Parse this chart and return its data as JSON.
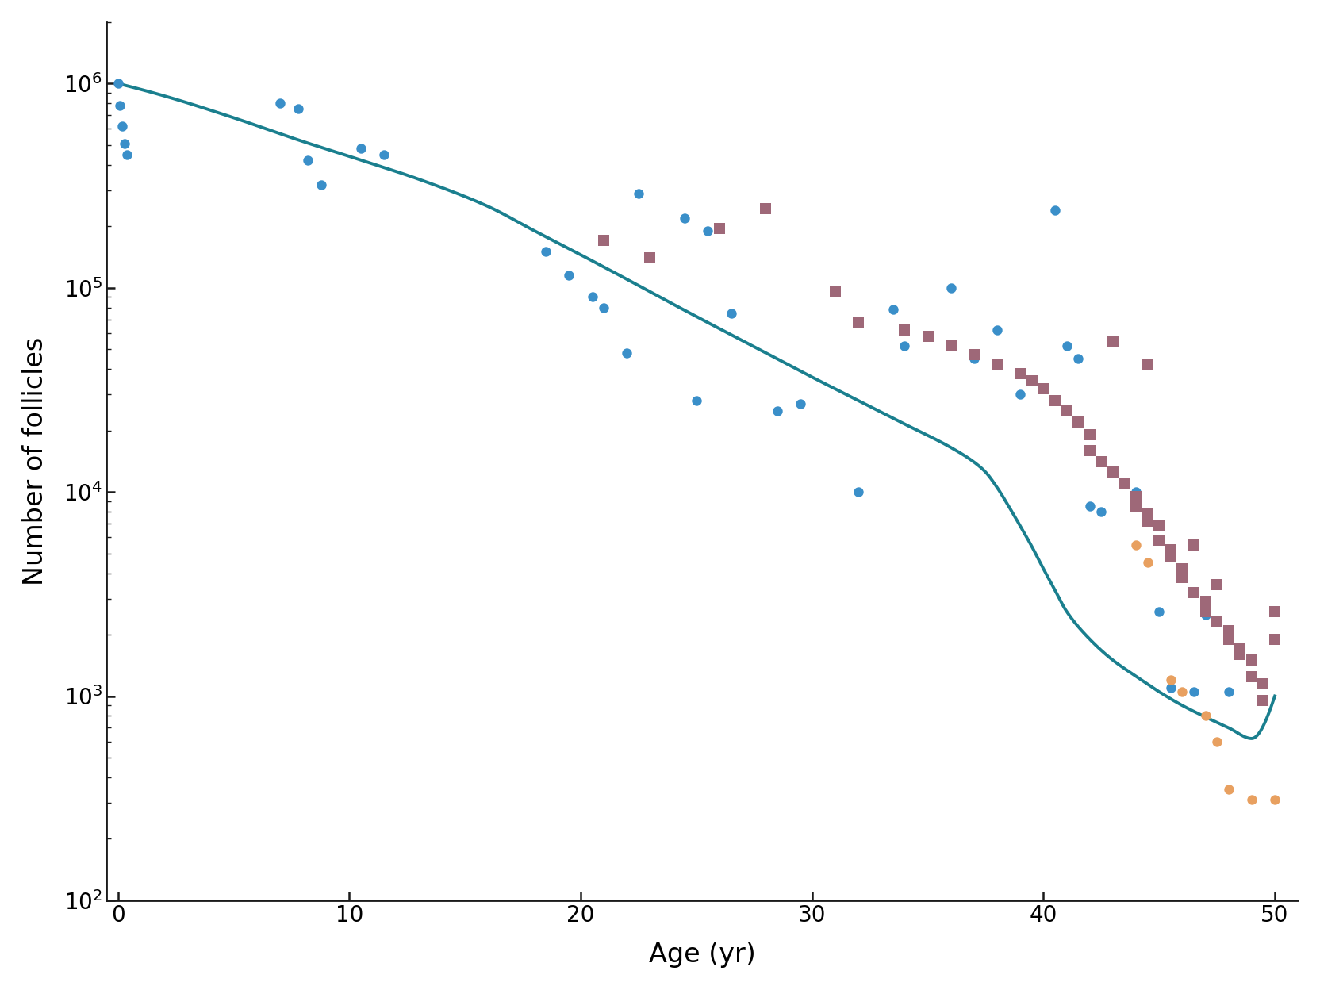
{
  "title": "",
  "xlabel": "Age (yr)",
  "ylabel": "Number of follicles",
  "xlim": [
    -0.5,
    51
  ],
  "ylim": [
    100,
    2000000
  ],
  "yticks": [
    100,
    1000,
    10000,
    100000,
    1000000
  ],
  "xticks": [
    0,
    10,
    20,
    30,
    40,
    50
  ],
  "blue_circles": [
    [
      0.0,
      1000000
    ],
    [
      0.1,
      780000
    ],
    [
      0.2,
      620000
    ],
    [
      0.3,
      510000
    ],
    [
      0.4,
      450000
    ],
    [
      7.0,
      800000
    ],
    [
      7.8,
      750000
    ],
    [
      8.2,
      420000
    ],
    [
      8.8,
      320000
    ],
    [
      10.5,
      480000
    ],
    [
      11.5,
      450000
    ],
    [
      18.5,
      150000
    ],
    [
      19.5,
      115000
    ],
    [
      20.5,
      90000
    ],
    [
      21.0,
      80000
    ],
    [
      22.5,
      290000
    ],
    [
      24.5,
      220000
    ],
    [
      25.5,
      190000
    ],
    [
      26.5,
      75000
    ],
    [
      22.0,
      48000
    ],
    [
      25.0,
      28000
    ],
    [
      28.5,
      25000
    ],
    [
      29.5,
      27000
    ],
    [
      32.0,
      10000
    ],
    [
      33.5,
      78000
    ],
    [
      34.0,
      52000
    ],
    [
      36.0,
      100000
    ],
    [
      37.0,
      45000
    ],
    [
      38.0,
      62000
    ],
    [
      39.0,
      30000
    ],
    [
      40.5,
      240000
    ],
    [
      41.0,
      52000
    ],
    [
      41.5,
      45000
    ],
    [
      42.0,
      8500
    ],
    [
      42.5,
      8000
    ],
    [
      44.0,
      10000
    ],
    [
      45.0,
      2600
    ],
    [
      45.5,
      1100
    ],
    [
      46.5,
      1050
    ],
    [
      47.0,
      2500
    ],
    [
      48.0,
      1050
    ]
  ],
  "mauve_squares": [
    [
      21.0,
      170000
    ],
    [
      23.0,
      140000
    ],
    [
      26.0,
      195000
    ],
    [
      28.0,
      245000
    ],
    [
      31.0,
      95000
    ],
    [
      32.0,
      68000
    ],
    [
      34.0,
      62000
    ],
    [
      35.0,
      58000
    ],
    [
      36.0,
      52000
    ],
    [
      37.0,
      47000
    ],
    [
      38.0,
      42000
    ],
    [
      39.0,
      38000
    ],
    [
      39.5,
      35000
    ],
    [
      40.0,
      32000
    ],
    [
      40.5,
      28000
    ],
    [
      41.0,
      25000
    ],
    [
      41.5,
      22000
    ],
    [
      42.0,
      19000
    ],
    [
      42.0,
      16000
    ],
    [
      42.5,
      14000
    ],
    [
      43.0,
      12500
    ],
    [
      43.5,
      11000
    ],
    [
      44.0,
      9500
    ],
    [
      44.0,
      8500
    ],
    [
      44.5,
      7800
    ],
    [
      44.5,
      7200
    ],
    [
      45.0,
      6800
    ],
    [
      45.0,
      5800
    ],
    [
      45.5,
      5200
    ],
    [
      45.5,
      4800
    ],
    [
      46.0,
      4200
    ],
    [
      46.0,
      3800
    ],
    [
      46.5,
      3200
    ],
    [
      47.0,
      2900
    ],
    [
      47.0,
      2600
    ],
    [
      47.5,
      2300
    ],
    [
      48.0,
      2100
    ],
    [
      48.0,
      1900
    ],
    [
      48.5,
      1700
    ],
    [
      48.5,
      1600
    ],
    [
      49.0,
      1500
    ],
    [
      49.0,
      1250
    ],
    [
      49.5,
      1150
    ],
    [
      49.5,
      950
    ],
    [
      50.0,
      1900
    ],
    [
      50.0,
      2600
    ],
    [
      43.0,
      55000
    ],
    [
      44.5,
      42000
    ],
    [
      46.5,
      5500
    ],
    [
      47.5,
      3500
    ]
  ],
  "orange_circles": [
    [
      44.0,
      5500
    ],
    [
      44.5,
      4500
    ],
    [
      45.5,
      1200
    ],
    [
      46.0,
      1050
    ],
    [
      47.0,
      800
    ],
    [
      47.5,
      600
    ],
    [
      48.0,
      350
    ],
    [
      49.0,
      310
    ],
    [
      50.0,
      310
    ]
  ],
  "curve_color": "#1a7f8e",
  "blue_color": "#3a8fc9",
  "mauve_color": "#9e6878",
  "orange_color": "#e8a060",
  "background_color": "#ffffff",
  "axis_color": "#1a1a1a",
  "marker_size_circle": 80,
  "marker_size_square": 90,
  "line_width": 2.8,
  "curve_points": [
    [
      0,
      1000000
    ],
    [
      2,
      870000
    ],
    [
      5,
      680000
    ],
    [
      8,
      520000
    ],
    [
      10,
      440000
    ],
    [
      13,
      340000
    ],
    [
      16,
      250000
    ],
    [
      18,
      190000
    ],
    [
      20,
      145000
    ],
    [
      22,
      110000
    ],
    [
      24,
      83000
    ],
    [
      26,
      63000
    ],
    [
      28,
      48000
    ],
    [
      30,
      36500
    ],
    [
      32,
      28000
    ],
    [
      34,
      21500
    ],
    [
      36,
      16500
    ],
    [
      37,
      14000
    ],
    [
      37.5,
      12500
    ],
    [
      38,
      10500
    ],
    [
      38.5,
      8500
    ],
    [
      39,
      6800
    ],
    [
      39.5,
      5400
    ],
    [
      40,
      4200
    ],
    [
      40.5,
      3300
    ],
    [
      41,
      2600
    ],
    [
      42,
      1900
    ],
    [
      43,
      1500
    ],
    [
      44,
      1250
    ],
    [
      45,
      1050
    ],
    [
      46,
      900
    ],
    [
      47,
      790
    ],
    [
      48,
      700
    ],
    [
      49,
      620
    ],
    [
      50,
      1000
    ]
  ]
}
